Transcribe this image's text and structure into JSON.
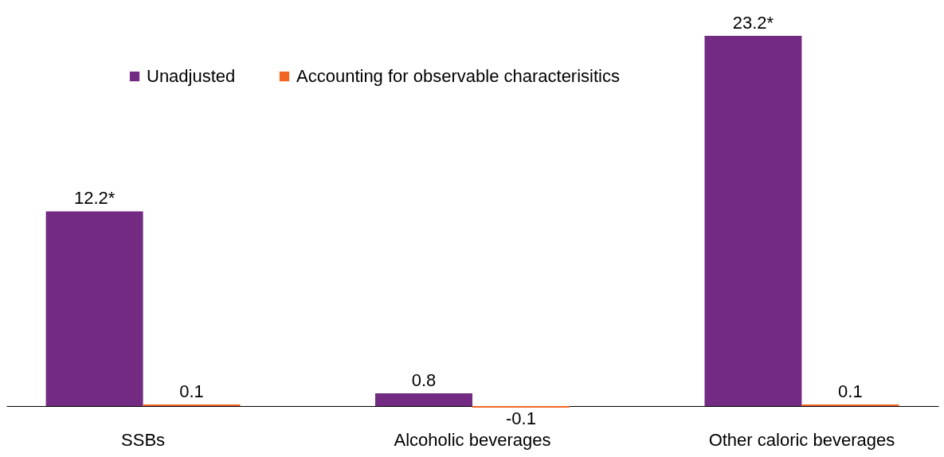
{
  "chart_data": {
    "type": "bar",
    "categories": [
      "SSBs",
      "Alcoholic beverages",
      "Other caloric beverages"
    ],
    "series": [
      {
        "name": "Unadjusted",
        "color": "#722a82",
        "values": [
          12.2,
          0.8,
          23.2
        ],
        "value_labels": [
          "12.2*",
          "0.8",
          "23.2*"
        ]
      },
      {
        "name": "Accounting for observable characterisitics",
        "color": "#f26522",
        "values": [
          0.1,
          -0.1,
          0.1
        ],
        "value_labels": [
          "0.1",
          "-0.1",
          "0.1"
        ]
      }
    ],
    "legend": "top left"
  }
}
